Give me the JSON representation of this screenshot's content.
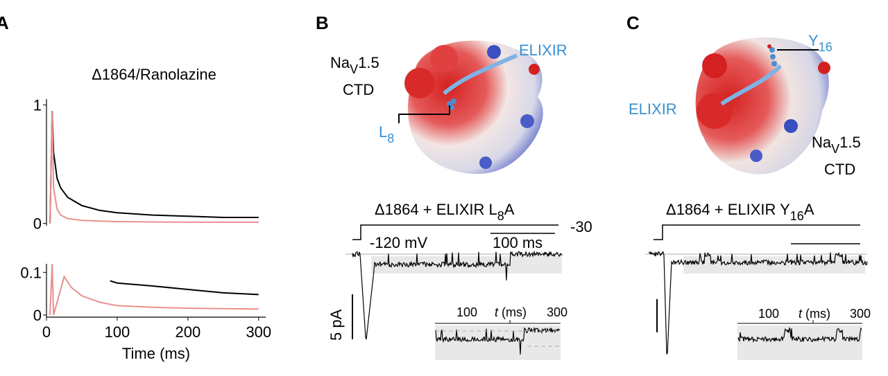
{
  "chart_data": [
    {
      "type": "line",
      "panel": "A",
      "title": "Δ1864/Ranolazine",
      "x": [
        5,
        8,
        10,
        15,
        20,
        30,
        50,
        75,
        100,
        150,
        200,
        250,
        300
      ],
      "series": [
        {
          "color": "#000000",
          "values": [
            0,
            0.95,
            0.6,
            0.38,
            0.3,
            0.22,
            0.15,
            0.11,
            0.09,
            0.07,
            0.06,
            0.05,
            0.05
          ]
        },
        {
          "color": "#e8908c",
          "values": [
            0,
            0.95,
            0.3,
            0.12,
            0.07,
            0.04,
            0.025,
            0.02,
            0.015,
            0.012,
            0.01,
            0.01,
            0.01
          ]
        }
      ],
      "xlim": [
        0,
        310
      ],
      "ylim": [
        -0.02,
        1.05
      ],
      "yticks": [
        0,
        1
      ]
    },
    {
      "type": "line",
      "x_label": "Time (ms)",
      "x": [
        5,
        8,
        10,
        25,
        35,
        50,
        75,
        90,
        100,
        150,
        200,
        250,
        300
      ],
      "series": [
        {
          "color": "#000000",
          "values": [
            null,
            null,
            null,
            null,
            null,
            null,
            null,
            0.08,
            0.075,
            0.068,
            0.06,
            0.052,
            0.048
          ]
        },
        {
          "color": "#e8908c",
          "values": [
            0,
            0.12,
            0,
            0.09,
            0.065,
            0.045,
            0.03,
            0.025,
            0.022,
            0.018,
            0.016,
            0.015,
            0.014
          ]
        }
      ],
      "xlim": [
        0,
        310
      ],
      "ylim": [
        -0.005,
        0.12
      ],
      "xticks": [
        0,
        100,
        200,
        300
      ],
      "yticks": [
        0,
        0.1
      ]
    }
  ],
  "panels": {
    "B": {
      "label": "B",
      "protein": {
        "na": "Na",
        "na_sub": "V",
        "na_rest": "1.5",
        "ctd": "CTD",
        "elixir": "ELIXIR",
        "residue": "L",
        "residue_sub": "8"
      },
      "title": {
        "main": "Δ1864 + ELIXIR L",
        "sub": "8",
        "end": "A"
      },
      "voltage_hold": "-120 mV",
      "voltage_step": "-30",
      "time_bar": "100 ms",
      "current_bar": "5 pA",
      "inset": {
        "tick_low": "100",
        "tick_high": "300",
        "t": "t",
        "unit": "(ms)"
      }
    },
    "C": {
      "label": "C",
      "protein": {
        "na": "Na",
        "na_sub": "V",
        "na_rest": "1.5",
        "ctd": "CTD",
        "elixir": "ELIXIR",
        "residue": "Y",
        "residue_sub": "16"
      },
      "title": {
        "main": "Δ1864 + ELIXIR Y",
        "sub": "16",
        "end": "A"
      },
      "inset": {
        "tick_low": "100",
        "tick_high": "300",
        "t": "t",
        "unit": "(ms)"
      }
    }
  }
}
